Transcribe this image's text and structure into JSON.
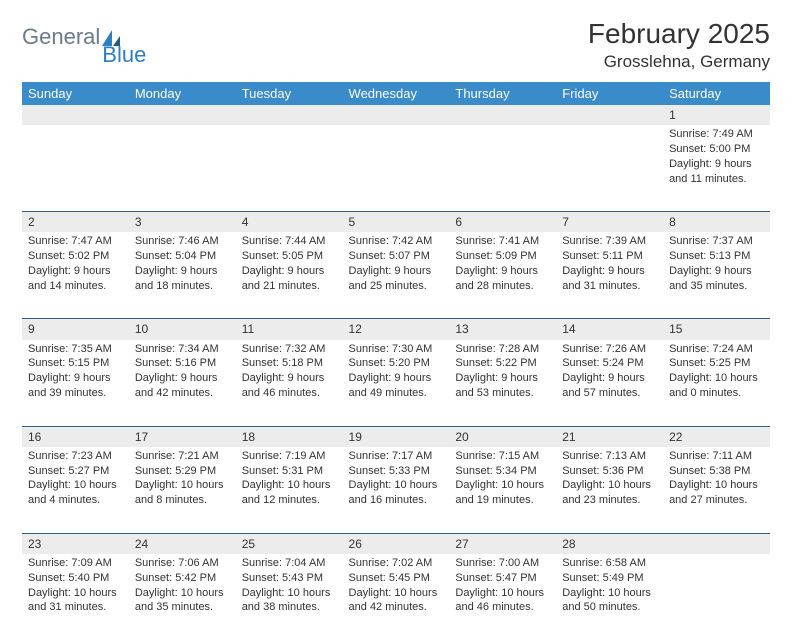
{
  "brand": {
    "word1": "General",
    "word2": "Blue"
  },
  "title": "February 2025",
  "location": "Grosslehna, Germany",
  "colors": {
    "header_bg": "#3a8bc9",
    "header_text": "#ffffff",
    "daynum_bg": "#ececec",
    "border": "#2d5f8a",
    "text": "#333333",
    "logo_gray": "#6b7b8a",
    "logo_blue": "#2d7fbf",
    "page_bg": "#ffffff"
  },
  "typography": {
    "title_fontsize": 28,
    "location_fontsize": 17,
    "header_fontsize": 13,
    "daynum_fontsize": 12,
    "body_fontsize": 11
  },
  "weekdays": [
    "Sunday",
    "Monday",
    "Tuesday",
    "Wednesday",
    "Thursday",
    "Friday",
    "Saturday"
  ],
  "weeks": [
    [
      null,
      null,
      null,
      null,
      null,
      null,
      {
        "n": "1",
        "sunrise": "7:49 AM",
        "sunset": "5:00 PM",
        "dl1": "9 hours",
        "dl2": "and 11 minutes."
      }
    ],
    [
      {
        "n": "2",
        "sunrise": "7:47 AM",
        "sunset": "5:02 PM",
        "dl1": "9 hours",
        "dl2": "and 14 minutes."
      },
      {
        "n": "3",
        "sunrise": "7:46 AM",
        "sunset": "5:04 PM",
        "dl1": "9 hours",
        "dl2": "and 18 minutes."
      },
      {
        "n": "4",
        "sunrise": "7:44 AM",
        "sunset": "5:05 PM",
        "dl1": "9 hours",
        "dl2": "and 21 minutes."
      },
      {
        "n": "5",
        "sunrise": "7:42 AM",
        "sunset": "5:07 PM",
        "dl1": "9 hours",
        "dl2": "and 25 minutes."
      },
      {
        "n": "6",
        "sunrise": "7:41 AM",
        "sunset": "5:09 PM",
        "dl1": "9 hours",
        "dl2": "and 28 minutes."
      },
      {
        "n": "7",
        "sunrise": "7:39 AM",
        "sunset": "5:11 PM",
        "dl1": "9 hours",
        "dl2": "and 31 minutes."
      },
      {
        "n": "8",
        "sunrise": "7:37 AM",
        "sunset": "5:13 PM",
        "dl1": "9 hours",
        "dl2": "and 35 minutes."
      }
    ],
    [
      {
        "n": "9",
        "sunrise": "7:35 AM",
        "sunset": "5:15 PM",
        "dl1": "9 hours",
        "dl2": "and 39 minutes."
      },
      {
        "n": "10",
        "sunrise": "7:34 AM",
        "sunset": "5:16 PM",
        "dl1": "9 hours",
        "dl2": "and 42 minutes."
      },
      {
        "n": "11",
        "sunrise": "7:32 AM",
        "sunset": "5:18 PM",
        "dl1": "9 hours",
        "dl2": "and 46 minutes."
      },
      {
        "n": "12",
        "sunrise": "7:30 AM",
        "sunset": "5:20 PM",
        "dl1": "9 hours",
        "dl2": "and 49 minutes."
      },
      {
        "n": "13",
        "sunrise": "7:28 AM",
        "sunset": "5:22 PM",
        "dl1": "9 hours",
        "dl2": "and 53 minutes."
      },
      {
        "n": "14",
        "sunrise": "7:26 AM",
        "sunset": "5:24 PM",
        "dl1": "9 hours",
        "dl2": "and 57 minutes."
      },
      {
        "n": "15",
        "sunrise": "7:24 AM",
        "sunset": "5:25 PM",
        "dl1": "10 hours",
        "dl2": "and 0 minutes."
      }
    ],
    [
      {
        "n": "16",
        "sunrise": "7:23 AM",
        "sunset": "5:27 PM",
        "dl1": "10 hours",
        "dl2": "and 4 minutes."
      },
      {
        "n": "17",
        "sunrise": "7:21 AM",
        "sunset": "5:29 PM",
        "dl1": "10 hours",
        "dl2": "and 8 minutes."
      },
      {
        "n": "18",
        "sunrise": "7:19 AM",
        "sunset": "5:31 PM",
        "dl1": "10 hours",
        "dl2": "and 12 minutes."
      },
      {
        "n": "19",
        "sunrise": "7:17 AM",
        "sunset": "5:33 PM",
        "dl1": "10 hours",
        "dl2": "and 16 minutes."
      },
      {
        "n": "20",
        "sunrise": "7:15 AM",
        "sunset": "5:34 PM",
        "dl1": "10 hours",
        "dl2": "and 19 minutes."
      },
      {
        "n": "21",
        "sunrise": "7:13 AM",
        "sunset": "5:36 PM",
        "dl1": "10 hours",
        "dl2": "and 23 minutes."
      },
      {
        "n": "22",
        "sunrise": "7:11 AM",
        "sunset": "5:38 PM",
        "dl1": "10 hours",
        "dl2": "and 27 minutes."
      }
    ],
    [
      {
        "n": "23",
        "sunrise": "7:09 AM",
        "sunset": "5:40 PM",
        "dl1": "10 hours",
        "dl2": "and 31 minutes."
      },
      {
        "n": "24",
        "sunrise": "7:06 AM",
        "sunset": "5:42 PM",
        "dl1": "10 hours",
        "dl2": "and 35 minutes."
      },
      {
        "n": "25",
        "sunrise": "7:04 AM",
        "sunset": "5:43 PM",
        "dl1": "10 hours",
        "dl2": "and 38 minutes."
      },
      {
        "n": "26",
        "sunrise": "7:02 AM",
        "sunset": "5:45 PM",
        "dl1": "10 hours",
        "dl2": "and 42 minutes."
      },
      {
        "n": "27",
        "sunrise": "7:00 AM",
        "sunset": "5:47 PM",
        "dl1": "10 hours",
        "dl2": "and 46 minutes."
      },
      {
        "n": "28",
        "sunrise": "6:58 AM",
        "sunset": "5:49 PM",
        "dl1": "10 hours",
        "dl2": "and 50 minutes."
      },
      null
    ]
  ],
  "labels": {
    "sunrise": "Sunrise:",
    "sunset": "Sunset:",
    "daylight": "Daylight:"
  }
}
